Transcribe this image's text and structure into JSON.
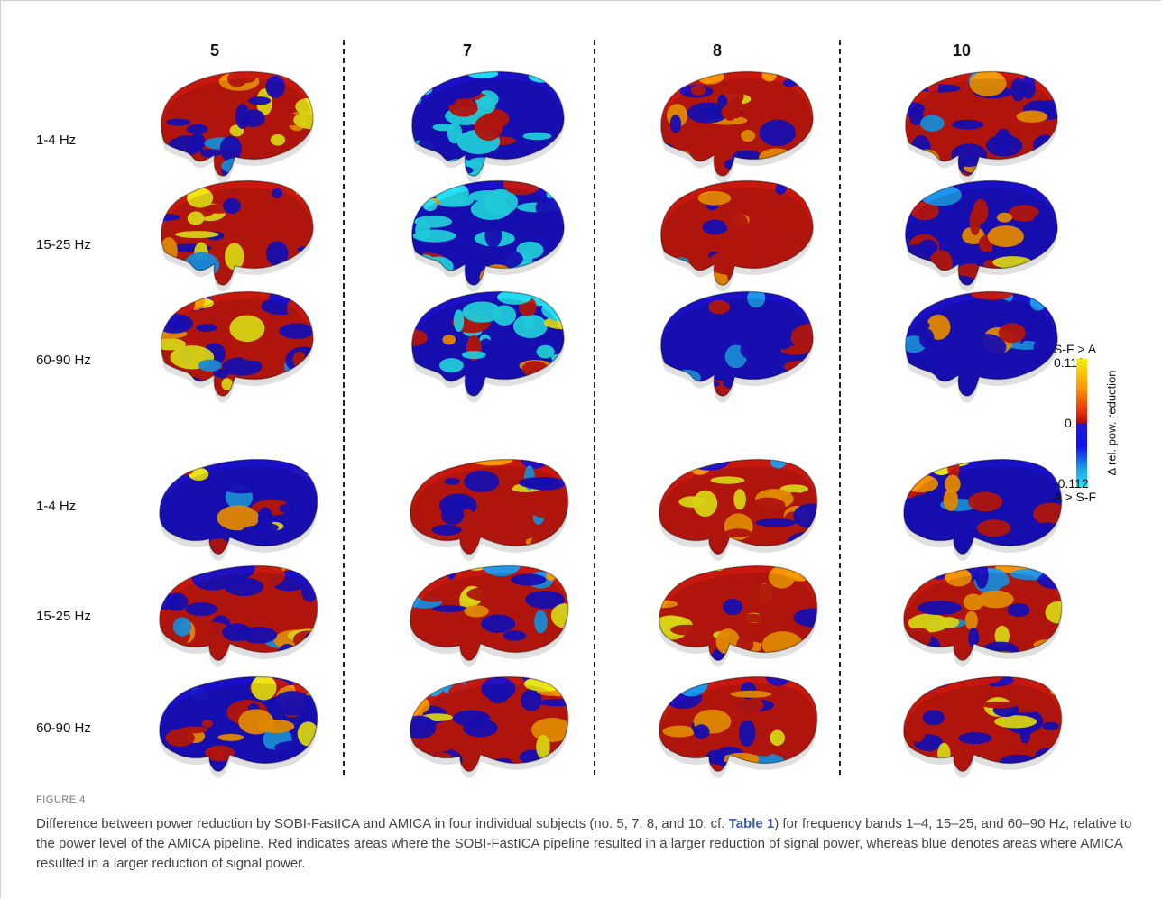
{
  "columns": [
    "5",
    "7",
    "8",
    "10"
  ],
  "rows": [
    "1-4 Hz",
    "15-25 Hz",
    "60-90 Hz",
    "1-4 Hz",
    "15-25 Hz",
    "60-90 Hz"
  ],
  "colorbar": {
    "top_label": "S-F > A",
    "max": "0.112",
    "mid": "0",
    "min": "-0.112",
    "bottom_label": "A > S-F",
    "axis_label": "Δ rel. pow. reduction",
    "colors": [
      "#f4ef16",
      "#ff9a00",
      "#e82a05",
      "#b00a0a",
      "#1c17d8",
      "#1010f0",
      "#1e9ef2",
      "#25e6f5"
    ]
  },
  "figure": {
    "label": "FIGURE 4",
    "caption_start": "Difference between power reduction by SOBI-FastICA and AMICA in four individual subjects (no. 5, 7, 8, and 10; cf. ",
    "caption_ref": "Table 1",
    "caption_end": ") for frequency bands 1–4, 15–25, and 60–90 Hz, relative to the power level of the AMICA pipeline. Red indicates areas where the SOBI-FastICA pipeline resulted in a larger reduction of signal power, whereas blue denotes areas where AMICA resulted in a larger reduction of signal power."
  }
}
